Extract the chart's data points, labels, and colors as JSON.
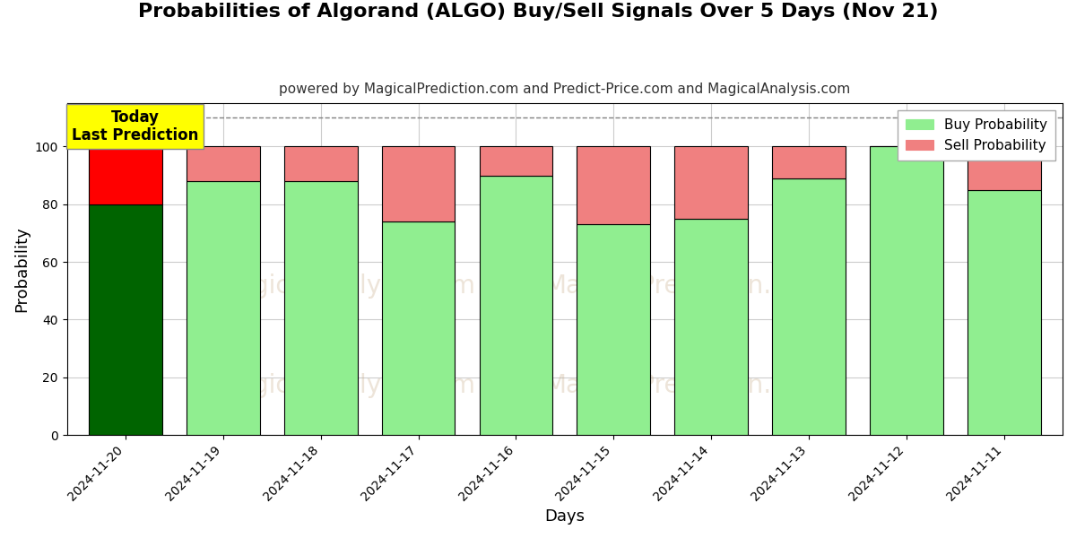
{
  "title": "Probabilities of Algorand (ALGO) Buy/Sell Signals Over 5 Days (Nov 21)",
  "subtitle": "powered by MagicalPrediction.com and Predict-Price.com and MagicalAnalysis.com",
  "xlabel": "Days",
  "ylabel": "Probability",
  "dates": [
    "2024-11-20",
    "2024-11-19",
    "2024-11-18",
    "2024-11-17",
    "2024-11-16",
    "2024-11-15",
    "2024-11-14",
    "2024-11-13",
    "2024-11-12",
    "2024-11-11"
  ],
  "buy_values": [
    80,
    88,
    88,
    74,
    90,
    73,
    75,
    89,
    100,
    85
  ],
  "sell_values": [
    20,
    12,
    12,
    26,
    10,
    27,
    25,
    11,
    0,
    15
  ],
  "today_buy_color": "#006400",
  "today_sell_color": "#ff0000",
  "normal_buy_color": "#90EE90",
  "normal_sell_color": "#F08080",
  "bar_edge_color": "#000000",
  "ylim": [
    0,
    115
  ],
  "yticks": [
    0,
    20,
    40,
    60,
    80,
    100
  ],
  "dashed_line_y": 110,
  "annotation_text": "Today\nLast Prediction",
  "annotation_bg": "#ffff00",
  "background_color": "#ffffff",
  "grid_color": "#cccccc",
  "title_fontsize": 16,
  "subtitle_fontsize": 11,
  "axis_label_fontsize": 13,
  "tick_fontsize": 10,
  "legend_fontsize": 11
}
